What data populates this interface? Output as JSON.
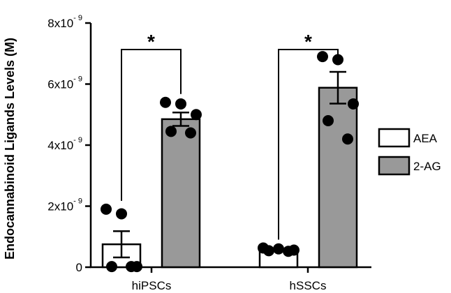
{
  "chart_data": {
    "type": "bar",
    "title": "",
    "ylabel": "Endocannabinoid Ligands Levels (M)",
    "xlabel": "",
    "ylim": [
      0,
      8e-09
    ],
    "yticks": [
      {
        "value": 0,
        "label": "0",
        "exp": ""
      },
      {
        "value": 2e-09,
        "label": "2x10",
        "exp": "- 9"
      },
      {
        "value": 4e-09,
        "label": "4x10",
        "exp": "- 9"
      },
      {
        "value": 6e-09,
        "label": "6x10",
        "exp": "- 9"
      },
      {
        "value": 8e-09,
        "label": "8x10",
        "exp": "- 9"
      }
    ],
    "categories": [
      "hiPSCs",
      "hSSCs"
    ],
    "legend_position": "right",
    "series": [
      {
        "name": "AEA",
        "color": "#ffffff",
        "values": [
          7.5e-10,
          5.7e-10
        ],
        "sem": [
          4.3e-10,
          4e-11
        ],
        "points": [
          [
            1.9e-09,
            1.75e-09,
            2e-11,
            2e-11,
            2e-11
          ],
          [
            6.3e-10,
            6e-10,
            5.6e-10,
            5.4e-10,
            5.2e-10
          ]
        ]
      },
      {
        "name": "2-AG",
        "color": "#999999",
        "values": [
          4.85e-09,
          5.88e-09
        ],
        "sem": [
          2.2e-10,
          5.2e-10
        ],
        "points": [
          [
            5.4e-09,
            5.35e-09,
            5e-09,
            4.45e-09,
            4.4e-09
          ],
          [
            6.9e-09,
            6.8e-09,
            5.35e-09,
            4.8e-09,
            4.2e-09
          ]
        ]
      }
    ],
    "annotations": [
      {
        "text": "*",
        "category": "hiPSCs"
      },
      {
        "text": "*",
        "category": "hSSCs"
      }
    ]
  }
}
